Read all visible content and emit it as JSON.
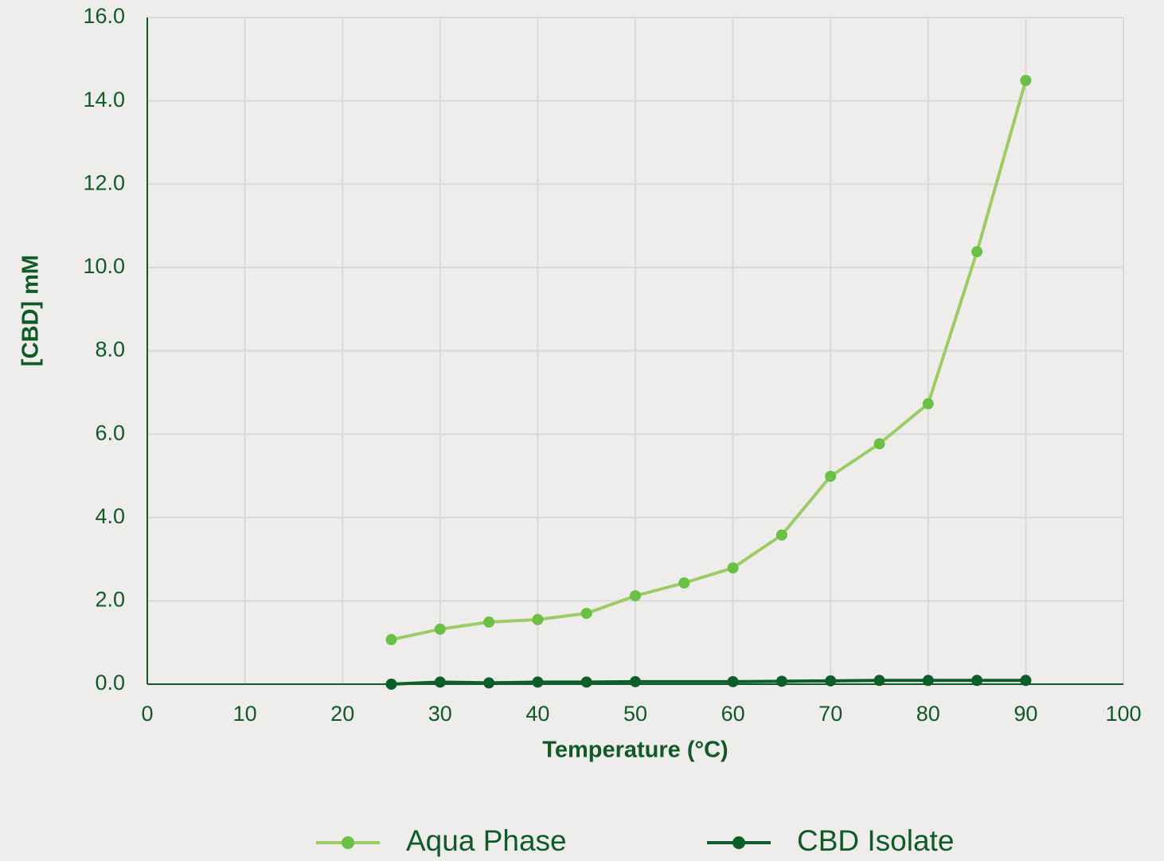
{
  "chart_data": {
    "type": "line",
    "x_label": "Temperature (°C)",
    "y_label": "[CBD] mM",
    "xlim": [
      0,
      100
    ],
    "xticks": [
      0,
      10,
      20,
      30,
      40,
      50,
      60,
      70,
      80,
      90,
      100
    ],
    "ylim": [
      0,
      16
    ],
    "yticks": [
      {
        "value": 0,
        "label": "0.0"
      },
      {
        "value": 2,
        "label": "2.0"
      },
      {
        "value": 4,
        "label": "4.0"
      },
      {
        "value": 6,
        "label": "6.0"
      },
      {
        "value": 8,
        "label": "8.0"
      },
      {
        "value": 10,
        "label": "10.0"
      },
      {
        "value": 12,
        "label": "12.0"
      },
      {
        "value": 14,
        "label": "14.0"
      },
      {
        "value": 16,
        "label": "16.0"
      }
    ],
    "grid": true,
    "legend": "bottom",
    "series": [
      {
        "name": "Aqua Phase",
        "color": "#9ccc65",
        "marker_color": "#6abf45",
        "x": [
          25,
          30,
          35,
          40,
          45,
          50,
          55,
          60,
          65,
          70,
          75,
          80,
          85,
          90
        ],
        "values": [
          1.07,
          1.32,
          1.49,
          1.55,
          1.7,
          2.12,
          2.43,
          2.79,
          3.58,
          4.99,
          5.77,
          6.73,
          10.38,
          14.49
        ]
      },
      {
        "name": "CBD Isolate",
        "color": "#0b5e2a",
        "marker_color": "#0b5e2a",
        "x": [
          25,
          30,
          35,
          40,
          45,
          50,
          60,
          65,
          70,
          75,
          80,
          85,
          90
        ],
        "values": [
          0,
          0.05,
          0.03,
          0.05,
          0.05,
          0.06,
          0.06,
          0.07,
          0.08,
          0.09,
          0.09,
          0.09,
          0.09
        ]
      }
    ]
  }
}
